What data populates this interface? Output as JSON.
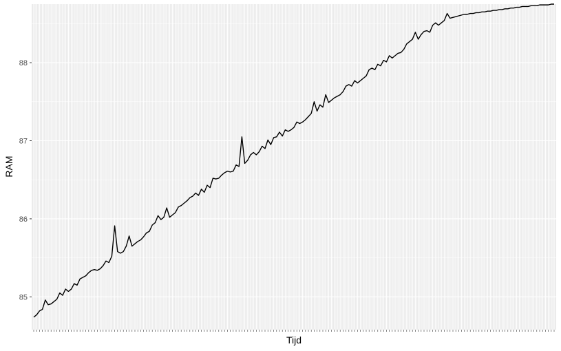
{
  "chart_data": {
    "type": "line",
    "xlabel": "Tijd",
    "ylabel": "RAM",
    "x_tick_labels_shown": false,
    "n_points": 181,
    "yticks": [
      85,
      86,
      87,
      88
    ],
    "ylim": [
      84.58,
      88.75
    ],
    "grid": true,
    "legend": "none",
    "colors": {
      "panel": "#ebebeb",
      "grid": "#ffffff",
      "line": "#000000"
    },
    "series": [
      {
        "values": [
          84.74,
          84.77,
          84.82,
          84.84,
          84.96,
          84.9,
          84.91,
          84.94,
          84.97,
          85.05,
          85.02,
          85.1,
          85.07,
          85.1,
          85.17,
          85.15,
          85.23,
          85.25,
          85.27,
          85.31,
          85.34,
          85.35,
          85.34,
          85.36,
          85.4,
          85.46,
          85.44,
          85.52,
          85.91,
          85.58,
          85.56,
          85.58,
          85.65,
          85.78,
          85.65,
          85.68,
          85.71,
          85.73,
          85.77,
          85.82,
          85.84,
          85.92,
          85.95,
          86.04,
          85.99,
          86.02,
          86.14,
          86.02,
          86.05,
          86.08,
          86.15,
          86.17,
          86.2,
          86.23,
          86.27,
          86.29,
          86.33,
          86.3,
          86.38,
          86.34,
          86.43,
          86.4,
          86.52,
          86.51,
          86.52,
          86.56,
          86.59,
          86.61,
          86.6,
          86.61,
          86.69,
          86.67,
          87.05,
          86.71,
          86.75,
          86.82,
          86.85,
          86.82,
          86.86,
          86.93,
          86.9,
          87.01,
          86.95,
          87.04,
          87.05,
          87.11,
          87.06,
          87.14,
          87.12,
          87.14,
          87.17,
          87.24,
          87.22,
          87.24,
          87.27,
          87.31,
          87.35,
          87.5,
          87.38,
          87.46,
          87.43,
          87.59,
          87.49,
          87.52,
          87.55,
          87.57,
          87.59,
          87.63,
          87.7,
          87.72,
          87.7,
          87.77,
          87.74,
          87.77,
          87.8,
          87.83,
          87.91,
          87.93,
          87.91,
          87.98,
          87.96,
          88.03,
          88.01,
          88.09,
          88.06,
          88.09,
          88.12,
          88.13,
          88.17,
          88.24,
          88.27,
          88.3,
          88.39,
          88.3,
          88.36,
          88.4,
          88.41,
          88.39,
          88.48,
          88.51,
          88.48,
          88.51,
          88.54,
          88.63,
          88.57,
          88.58,
          88.59,
          88.6,
          88.61,
          88.62,
          88.62,
          88.63,
          88.63,
          88.64,
          88.64,
          88.65,
          88.65,
          88.66,
          88.66,
          88.67,
          88.67,
          88.68,
          88.68,
          88.69,
          88.69,
          88.7,
          88.7,
          88.71,
          88.71,
          88.72,
          88.72,
          88.72,
          88.73,
          88.73,
          88.73,
          88.74,
          88.74,
          88.74,
          88.74,
          88.75,
          88.75
        ]
      }
    ]
  }
}
